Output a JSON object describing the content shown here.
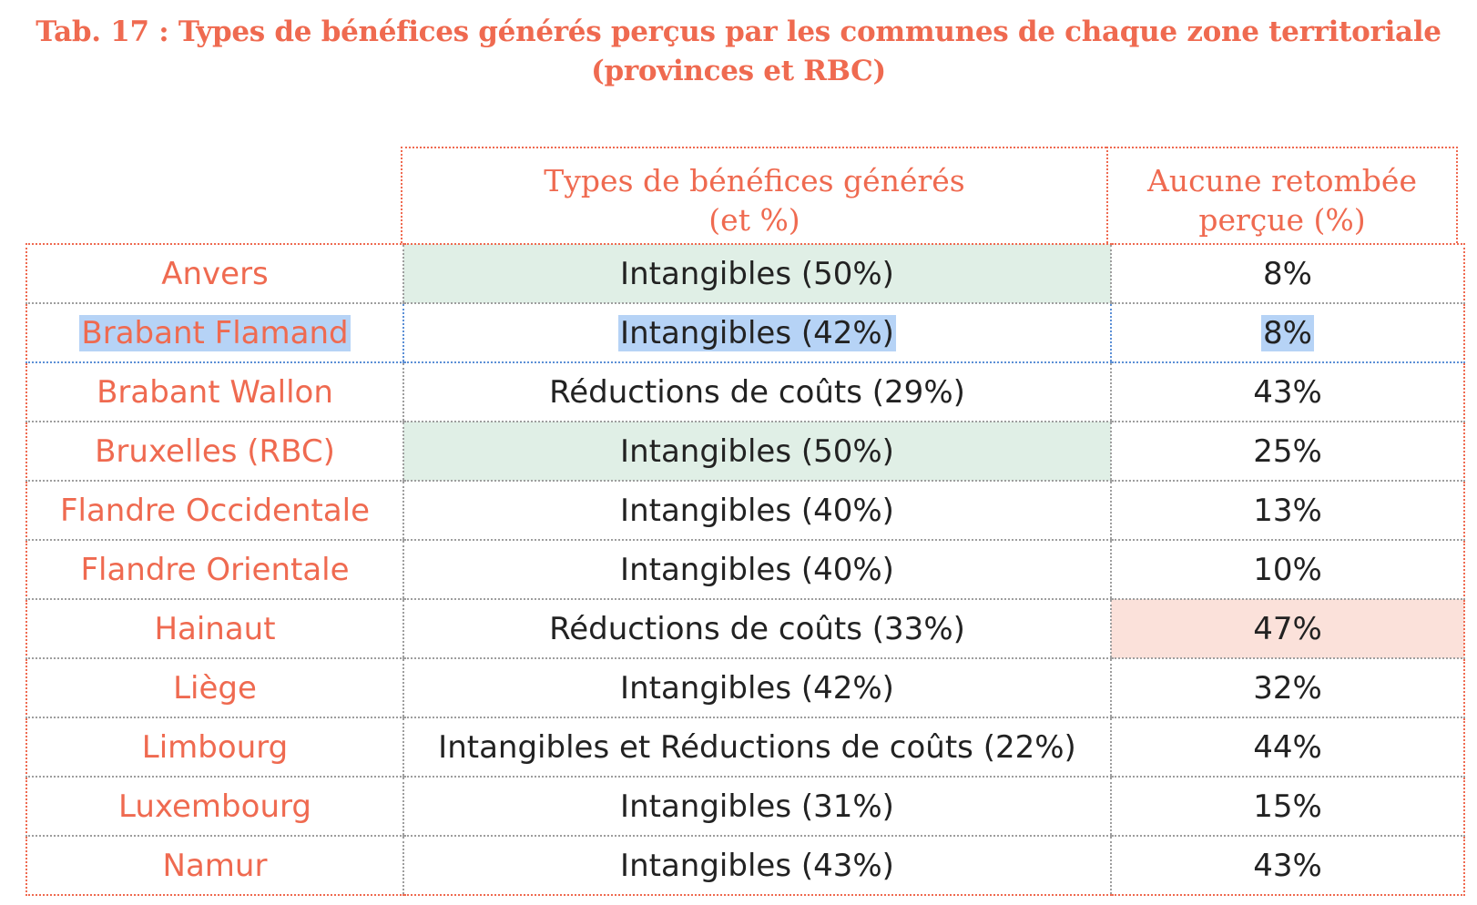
{
  "title": {
    "line1": "Tab. 17 : Types de bénéfices générés perçus par les communes de chaque zone territoriale",
    "line2": "(provinces et RBC)"
  },
  "table": {
    "headers": {
      "types_line1": "Types de bénéfices générés",
      "types_line2": "(et %)",
      "none_line1": "Aucune retombée",
      "none_line2": "perçue (%)"
    },
    "rows": [
      {
        "zone": "Anvers",
        "types": "Intangibles (50%)",
        "none": "8%"
      },
      {
        "zone": "Brabant Flamand",
        "types": "Intangibles (42%)",
        "none": "8%"
      },
      {
        "zone": "Brabant Wallon",
        "types": "Réductions de coûts (29%)",
        "none": "43%"
      },
      {
        "zone": "Bruxelles (RBC)",
        "types": "Intangibles (50%)",
        "none": "25%"
      },
      {
        "zone": "Flandre Occidentale",
        "types": "Intangibles (40%)",
        "none": "13%"
      },
      {
        "zone": "Flandre Orientale",
        "types": "Intangibles (40%)",
        "none": "10%"
      },
      {
        "zone": "Hainaut",
        "types": "Réductions de coûts (33%)",
        "none": "47%"
      },
      {
        "zone": "Liège",
        "types": "Intangibles (42%)",
        "none": "32%"
      },
      {
        "zone": "Limbourg",
        "types": "Intangibles et Réductions de coûts (22%)",
        "none": "44%"
      },
      {
        "zone": "Luxembourg",
        "types": "Intangibles (31%)",
        "none": "15%"
      },
      {
        "zone": "Namur",
        "types": "Intangibles (43%)",
        "none": "43%"
      }
    ]
  },
  "colors": {
    "accent": "#ef6a50",
    "highlight_green": "#e0efe6",
    "highlight_pink": "#fbe1da",
    "text_selection": "#b6d3f6"
  }
}
